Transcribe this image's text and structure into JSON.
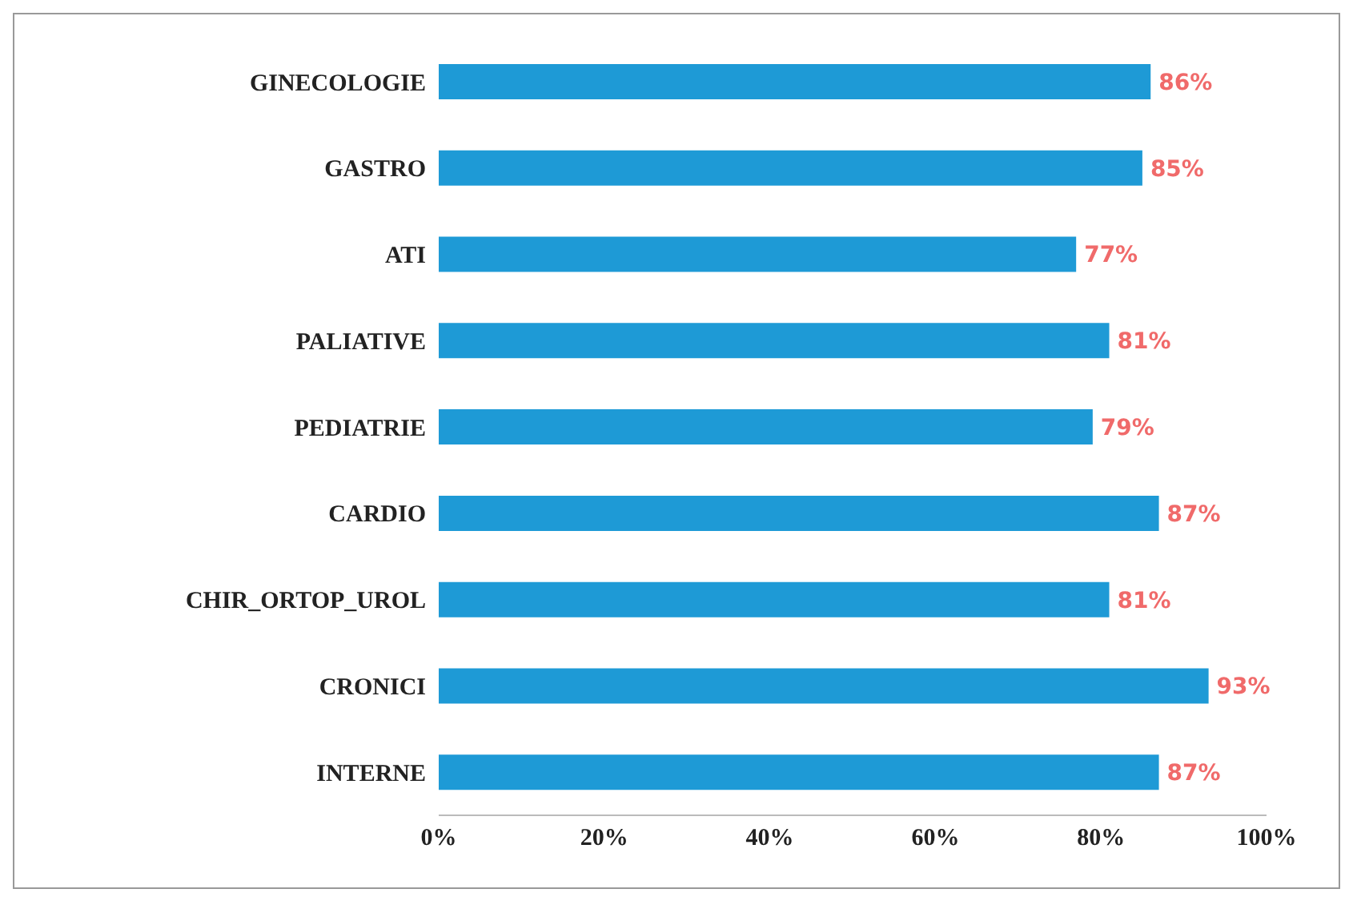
{
  "chart_data": {
    "type": "bar",
    "orientation": "horizontal",
    "categories": [
      "GINECOLOGIE",
      "GASTRO",
      "ATI",
      "PALIATIVE",
      "PEDIATRIE",
      "CARDIO",
      "CHIR_ORTOP_UROL",
      "CRONICI",
      "INTERNE"
    ],
    "values": [
      86,
      85,
      77,
      81,
      79,
      87,
      81,
      93,
      87
    ],
    "value_labels": [
      "86%",
      "85%",
      "77%",
      "81%",
      "79%",
      "87%",
      "81%",
      "93%",
      "87%"
    ],
    "color": "#1e9ad6",
    "xlim": [
      0,
      100
    ],
    "xticks": [
      {
        "value": 0,
        "label": "0%"
      },
      {
        "value": 20,
        "label": "20%"
      },
      {
        "value": 40,
        "label": "40%"
      },
      {
        "value": 60,
        "label": "60%"
      },
      {
        "value": 80,
        "label": "80%"
      },
      {
        "value": 100,
        "label": "100%"
      }
    ],
    "grid": false,
    "legend": false
  }
}
